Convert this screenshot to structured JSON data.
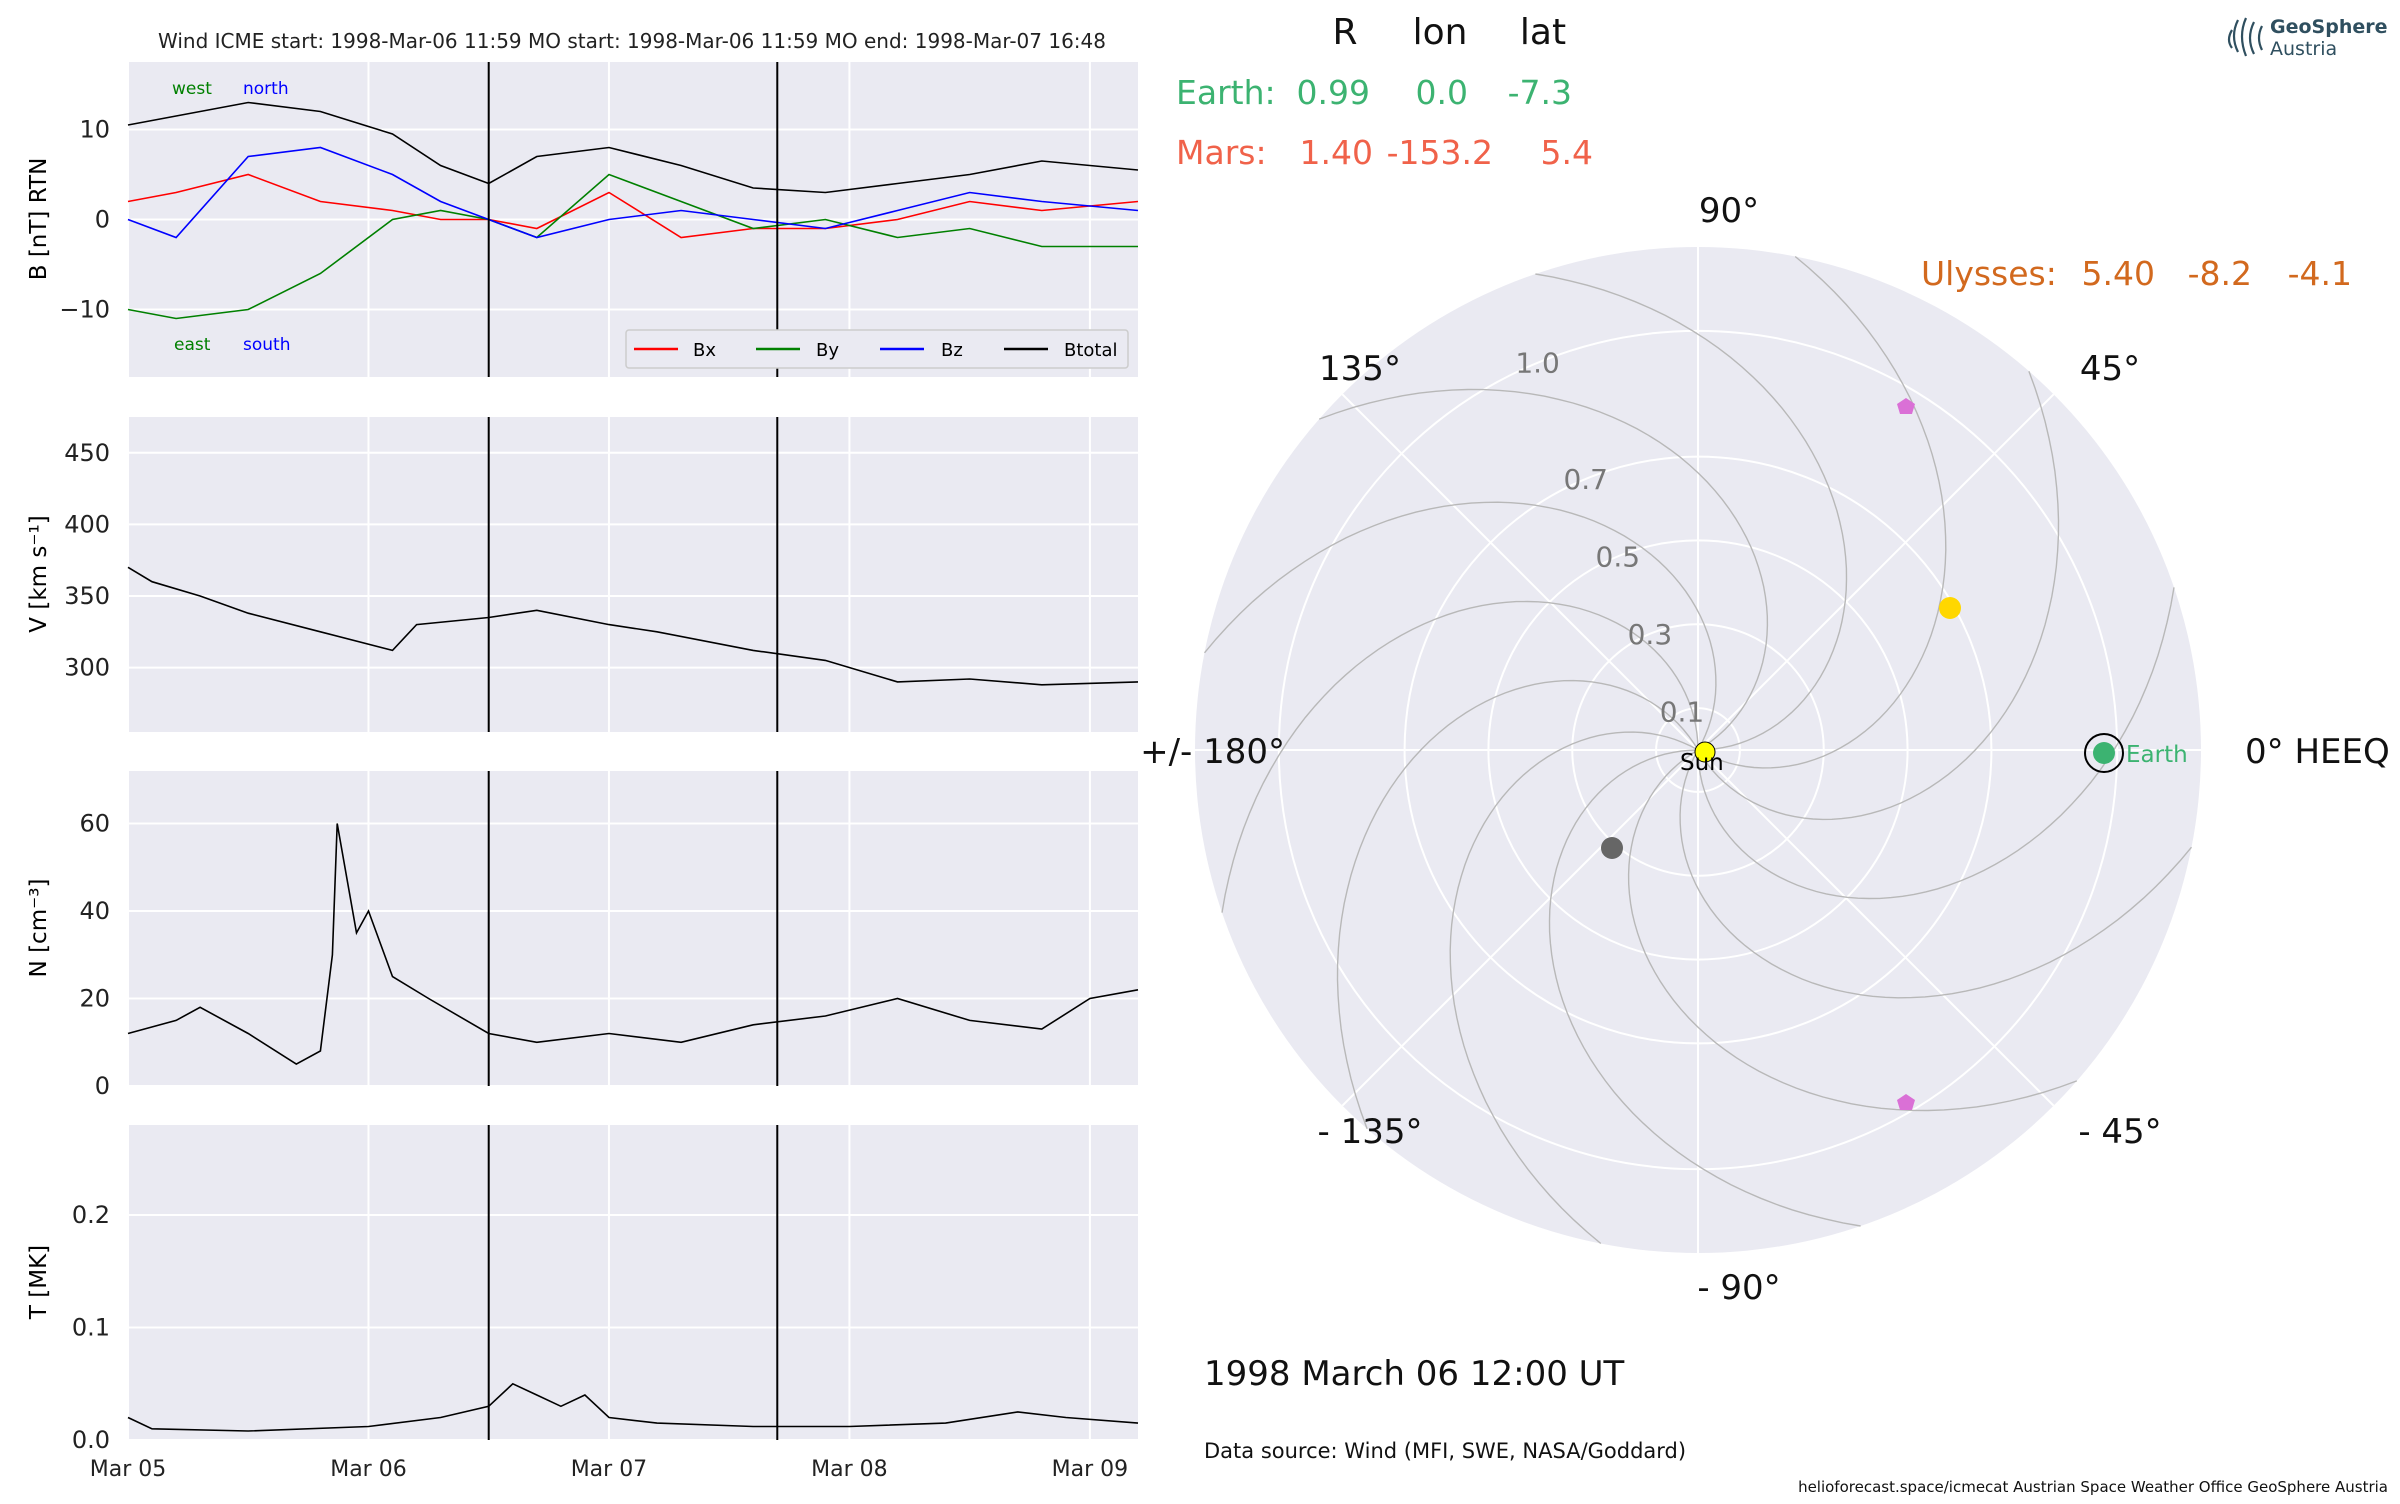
{
  "header": {
    "title": "Wind    ICME start: 1998-Mar-06 11:59   MO start: 1998-Mar-06 11:59   MO end: 1998-Mar-07 16:48"
  },
  "logo": {
    "line1": "GeoSphere",
    "line2": "Austria"
  },
  "colors": {
    "panel_bg": "#eaeaf2",
    "bx": "#ff0000",
    "by": "#008000",
    "bz": "#0000ff",
    "btotal": "#000000",
    "earth": "#3cb371",
    "mars": "#f0624a",
    "ulysses": "#d2691e",
    "sun": "#ffff00",
    "planet_yellow": "#ffd700",
    "planet_gray": "#666666",
    "marker_violet": "#da70d6"
  },
  "chart_data": [
    {
      "type": "line",
      "panel": "magnetic-field",
      "ylabel": "B [nT] RTN",
      "ylim": [
        -17.5,
        17.5
      ],
      "yticks": [
        "10",
        "0",
        "−10"
      ],
      "ytick_values": [
        10,
        0,
        -10
      ],
      "annotations": {
        "top_left": "west",
        "top_right": "north",
        "bottom_left": "east",
        "bottom_right": "south"
      },
      "legend": {
        "placement": "lower-right",
        "entries": [
          "Bx",
          "By",
          "Bz",
          "Btotal"
        ]
      },
      "x_unit": "days since 1998-03-05 00:00",
      "series": [
        {
          "name": "Btotal",
          "x": [
            0,
            0.2,
            0.5,
            0.8,
            1.1,
            1.3,
            1.5,
            1.7,
            2.0,
            2.3,
            2.6,
            2.9,
            3.2,
            3.5,
            3.8,
            4.2
          ],
          "values": [
            10.5,
            11.5,
            13,
            12,
            9.5,
            6,
            4,
            7,
            8,
            6,
            3.5,
            3,
            4,
            5,
            6.5,
            5.5
          ]
        },
        {
          "name": "Bx",
          "x": [
            0,
            0.2,
            0.5,
            0.8,
            1.1,
            1.3,
            1.5,
            1.7,
            2.0,
            2.3,
            2.6,
            2.9,
            3.2,
            3.5,
            3.8,
            4.2
          ],
          "values": [
            2,
            3,
            5,
            2,
            1,
            0,
            0,
            -1,
            3,
            -2,
            -1,
            -1,
            0,
            2,
            1,
            2
          ]
        },
        {
          "name": "By",
          "x": [
            0,
            0.2,
            0.5,
            0.8,
            1.1,
            1.3,
            1.5,
            1.7,
            2.0,
            2.3,
            2.6,
            2.9,
            3.2,
            3.5,
            3.8,
            4.2
          ],
          "values": [
            -10,
            -11,
            -10,
            -6,
            0,
            1,
            0,
            -2,
            5,
            2,
            -1,
            0,
            -2,
            -1,
            -3,
            -3
          ]
        },
        {
          "name": "Bz",
          "x": [
            0,
            0.2,
            0.5,
            0.8,
            1.1,
            1.3,
            1.5,
            1.7,
            2.0,
            2.3,
            2.6,
            2.9,
            3.2,
            3.5,
            3.8,
            4.2
          ],
          "values": [
            0,
            -2,
            7,
            8,
            5,
            2,
            0,
            -2,
            0,
            1,
            0,
            -1,
            1,
            3,
            2,
            1
          ]
        }
      ]
    },
    {
      "type": "line",
      "panel": "speed",
      "ylabel": "V [km s⁻¹]",
      "ylim": [
        255,
        475
      ],
      "yticks": [
        "450",
        "400",
        "350",
        "300"
      ],
      "ytick_values": [
        450,
        400,
        350,
        300
      ],
      "x_unit": "days since 1998-03-05 00:00",
      "series": [
        {
          "name": "V",
          "x": [
            0,
            0.1,
            0.3,
            0.5,
            0.8,
            1.1,
            1.2,
            1.5,
            1.7,
            2.0,
            2.2,
            2.6,
            2.9,
            3.2,
            3.5,
            3.8,
            4.2
          ],
          "values": [
            370,
            360,
            350,
            338,
            325,
            312,
            330,
            335,
            340,
            330,
            325,
            312,
            305,
            290,
            292,
            288,
            290
          ]
        }
      ]
    },
    {
      "type": "line",
      "panel": "density",
      "ylabel": "N [cm⁻³]",
      "ylim": [
        0,
        72
      ],
      "yticks": [
        "60",
        "40",
        "20",
        "0"
      ],
      "ytick_values": [
        60,
        40,
        20,
        0
      ],
      "x_unit": "days since 1998-03-05 00:00",
      "series": [
        {
          "name": "N",
          "x": [
            0,
            0.2,
            0.3,
            0.5,
            0.7,
            0.8,
            0.85,
            0.87,
            0.95,
            1.0,
            1.1,
            1.25,
            1.5,
            1.7,
            2.0,
            2.3,
            2.6,
            2.9,
            3.2,
            3.5,
            3.8,
            4.0,
            4.2
          ],
          "values": [
            12,
            15,
            18,
            12,
            5,
            8,
            30,
            60,
            35,
            40,
            25,
            20,
            12,
            10,
            12,
            10,
            14,
            16,
            20,
            15,
            13,
            20,
            22
          ]
        }
      ]
    },
    {
      "type": "line",
      "panel": "temperature",
      "ylabel": "T [MK]",
      "ylim": [
        0,
        0.28
      ],
      "yticks": [
        "0.2",
        "0.1",
        "0.0"
      ],
      "ytick_values": [
        0.2,
        0.1,
        0
      ],
      "xticks": [
        "Mar 05",
        "Mar 06",
        "Mar 07",
        "Mar 08",
        "Mar 09"
      ],
      "xtick_values": [
        0,
        1,
        2,
        3,
        4
      ],
      "xlim": [
        0,
        4.2
      ],
      "vlines": [
        1.5,
        2.7
      ],
      "x_unit": "days since 1998-03-05 00:00",
      "series": [
        {
          "name": "T",
          "x": [
            0,
            0.1,
            0.5,
            1.0,
            1.3,
            1.5,
            1.6,
            1.7,
            1.8,
            1.9,
            2.0,
            2.2,
            2.6,
            3.0,
            3.4,
            3.7,
            3.9,
            4.2
          ],
          "values": [
            0.02,
            0.01,
            0.008,
            0.012,
            0.02,
            0.03,
            0.05,
            0.04,
            0.03,
            0.04,
            0.02,
            0.015,
            0.012,
            0.012,
            0.015,
            0.025,
            0.02,
            0.015
          ]
        }
      ]
    },
    {
      "type": "scatter",
      "panel": "polar-positions",
      "radial_ticks": [
        "0.1",
        "0.3",
        "0.5",
        "0.7",
        "1.0"
      ],
      "angle_labels": [
        "90°",
        "45°",
        "0° HEEQ",
        "- 45°",
        "- 90°",
        "- 135°",
        "+/- 180°",
        "135°"
      ],
      "table_header": [
        "R",
        "lon",
        "lat"
      ],
      "bodies": [
        {
          "name": "Earth:",
          "r": "0.99",
          "lon": "0.0",
          "lat": "-7.3"
        },
        {
          "name": "Mars:",
          "r": "1.40",
          "lon": "-153.2",
          "lat": "5.4"
        },
        {
          "name": "Ulysses:",
          "r": "5.40",
          "lon": "-8.2",
          "lat": "-4.1"
        }
      ],
      "sun_label": "Sun",
      "earth_label": "Earth",
      "date_label": "1998 March 06  12:00 UT"
    }
  ],
  "footer": {
    "data_source": "Data source: Wind (MFI, SWE, NASA/Goddard)",
    "credits": "helioforecast.space/icmecat   Austrian Space Weather Office   GeoSphere Austria"
  }
}
